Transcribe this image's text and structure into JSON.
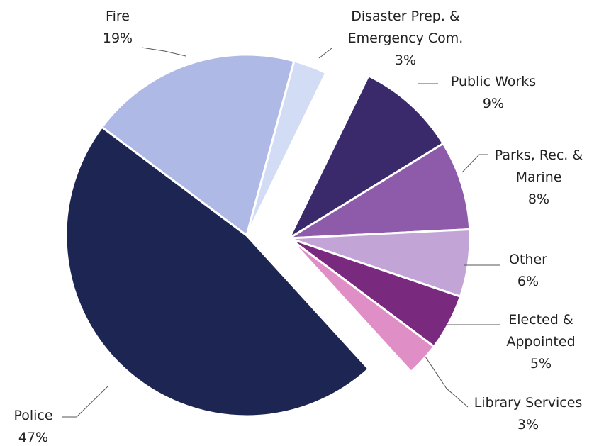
{
  "chart_data": {
    "type": "pie",
    "title": "",
    "slices": [
      {
        "label": [
          "Public Works"
        ],
        "percent_label": "9%",
        "value": 9,
        "color": "#3b2a6b"
      },
      {
        "label": [
          "Parks, Rec. &",
          "Marine"
        ],
        "percent_label": "8%",
        "value": 8,
        "color": "#8e5bab"
      },
      {
        "label": [
          "Other"
        ],
        "percent_label": "6%",
        "value": 6,
        "color": "#c3a4d6"
      },
      {
        "label": [
          "Elected &",
          "Appointed"
        ],
        "percent_label": "5%",
        "value": 5,
        "color": "#7a2a7e"
      },
      {
        "label": [
          "Library Services"
        ],
        "percent_label": "3%",
        "value": 3,
        "color": "#e08fc6"
      },
      {
        "label": [
          "Police"
        ],
        "percent_label": "47%",
        "value": 47,
        "color": "#1d2652"
      },
      {
        "label": [
          "Fire"
        ],
        "percent_label": "19%",
        "value": 19,
        "color": "#aeb9e6"
      },
      {
        "label": [
          "Disaster Prep. &",
          "Emergency Com."
        ],
        "percent_label": "3%",
        "value": 3,
        "color": "#d3dcf5"
      }
    ]
  }
}
